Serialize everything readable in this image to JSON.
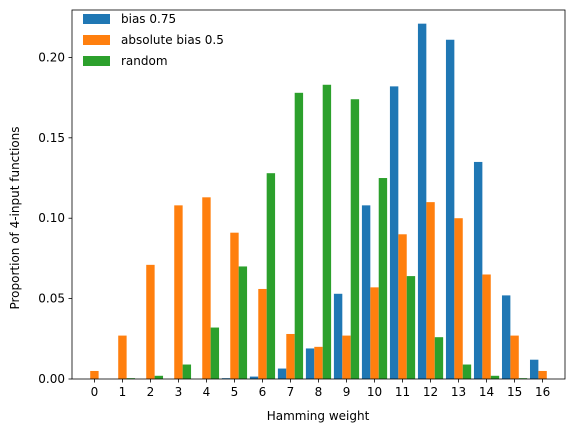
{
  "chart_data": {
    "type": "bar",
    "title": "",
    "xlabel": "Hamming weight",
    "ylabel": "Proportion of 4-input functions",
    "categories": [
      "0",
      "1",
      "2",
      "3",
      "4",
      "5",
      "6",
      "7",
      "8",
      "9",
      "10",
      "11",
      "12",
      "13",
      "14",
      "15",
      "16"
    ],
    "ylim": [
      0,
      0.2295
    ],
    "yticks": [
      0.0,
      0.05,
      0.1,
      0.15,
      0.2
    ],
    "ytick_labels": [
      "0.00",
      "0.05",
      "0.10",
      "0.15",
      "0.20"
    ],
    "grid": false,
    "legend_position": "top-left",
    "series": [
      {
        "name": "bias 0.75",
        "color": "#1f77b4",
        "values": [
          0.0,
          0.0,
          0.0,
          0.0,
          0.0,
          0.0005,
          0.0015,
          0.0065,
          0.019,
          0.053,
          0.108,
          0.182,
          0.221,
          0.211,
          0.135,
          0.052,
          0.012
        ]
      },
      {
        "name": "absolute bias 0.5",
        "color": "#ff7f0e",
        "values": [
          0.005,
          0.027,
          0.071,
          0.108,
          0.113,
          0.091,
          0.056,
          0.028,
          0.02,
          0.027,
          0.057,
          0.09,
          0.11,
          0.1,
          0.065,
          0.027,
          0.005
        ]
      },
      {
        "name": "random",
        "color": "#2ca02c",
        "values": [
          0.0,
          0.0005,
          0.002,
          0.009,
          0.032,
          0.07,
          0.128,
          0.178,
          0.183,
          0.174,
          0.125,
          0.064,
          0.026,
          0.009,
          0.002,
          0.0005,
          0.0
        ]
      }
    ]
  }
}
